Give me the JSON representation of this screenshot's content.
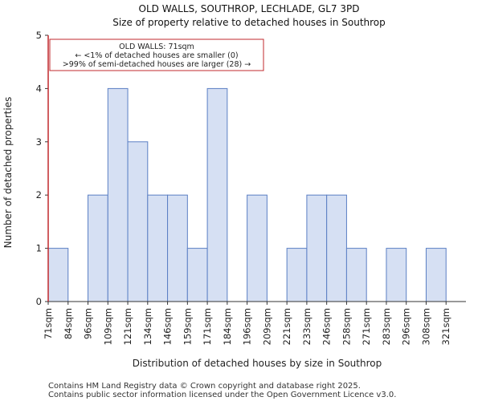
{
  "chart_data": {
    "type": "bar",
    "title": "OLD WALLS, SOUTHROP, LECHLADE, GL7 3PD",
    "subtitle": "Size of property relative to detached houses in Southrop",
    "xlabel": "Distribution of detached houses by size in Southrop",
    "ylabel": "Number of detached properties",
    "categories": [
      "71sqm",
      "84sqm",
      "96sqm",
      "109sqm",
      "121sqm",
      "134sqm",
      "146sqm",
      "159sqm",
      "171sqm",
      "184sqm",
      "196sqm",
      "209sqm",
      "221sqm",
      "233sqm",
      "246sqm",
      "258sqm",
      "271sqm",
      "283sqm",
      "296sqm",
      "308sqm",
      "321sqm"
    ],
    "values": [
      1,
      0,
      2,
      4,
      3,
      2,
      2,
      1,
      4,
      0,
      2,
      0,
      1,
      2,
      2,
      1,
      0,
      1,
      0,
      1,
      0
    ],
    "ylim": [
      0,
      5
    ],
    "yticks": [
      0,
      1,
      2,
      3,
      4,
      5
    ],
    "grid": false,
    "bar_color": "#d6e0f3",
    "bar_edge_color": "#5b7fc4",
    "marker": {
      "x_category": "71sqm",
      "color": "#c0282d",
      "annotation": [
        "OLD WALLS: 71sqm",
        "← <1% of detached houses are smaller (0)",
        ">99% of semi-detached houses are larger (28) →"
      ]
    }
  },
  "footer": {
    "line1": "Contains HM Land Registry data © Crown copyright and database right 2025.",
    "line2": "Contains public sector information licensed under the Open Government Licence v3.0."
  }
}
